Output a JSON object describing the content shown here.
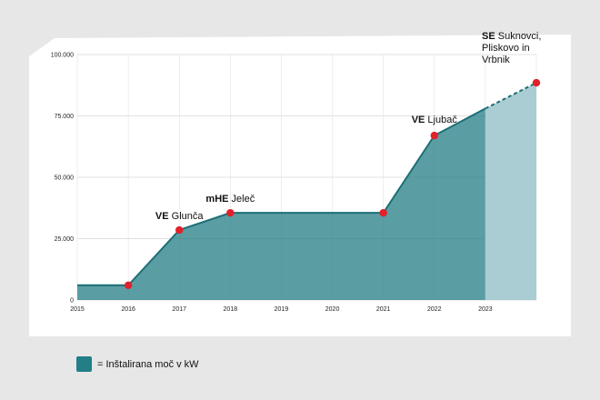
{
  "chart_data": {
    "type": "area",
    "x": [
      "2015",
      "2016",
      "2017",
      "2018",
      "2019",
      "2020",
      "2021",
      "2022",
      "2023"
    ],
    "series": [
      {
        "points": [
          {
            "x": 2015.0,
            "y": 6000
          },
          {
            "x": 2016.0,
            "y": 6000
          },
          {
            "x": 2017.0,
            "y": 28500
          },
          {
            "x": 2018.0,
            "y": 35500
          },
          {
            "x": 2021.0,
            "y": 35500
          },
          {
            "x": 2022.0,
            "y": 67000
          },
          {
            "x": 2023.0,
            "y": 78000
          }
        ],
        "projected": [
          {
            "x": 2023.0,
            "y": 78000
          },
          {
            "x": 2024.0,
            "y": 88500
          }
        ]
      }
    ],
    "markers": [
      {
        "x": 2016.0,
        "y": 6000
      },
      {
        "x": 2017.0,
        "y": 28500
      },
      {
        "x": 2018.0,
        "y": 35500
      },
      {
        "x": 2021.0,
        "y": 35500
      },
      {
        "x": 2022.0,
        "y": 67000
      },
      {
        "x": 2024.0,
        "y": 88500
      }
    ],
    "annotations": [
      {
        "bold": "VE",
        "text": " Glunča",
        "at": 2017.0
      },
      {
        "bold": "mHE",
        "text": " Jeleč",
        "at": 2018.0
      },
      {
        "bold": "VE",
        "text": " Ljubač",
        "at": 2022.0
      },
      {
        "bold": "SE",
        "text": " Suknovci,",
        "lines": [
          "Pliskovo in",
          "Vrbnik"
        ],
        "at": 2024.0
      }
    ],
    "yticks": [
      0,
      25000,
      50000,
      75000,
      100000
    ],
    "ytick_labels": [
      "0",
      "25.000",
      "50.000",
      "75.000",
      "100.000"
    ],
    "ylim": [
      0,
      100000
    ],
    "xlim": [
      2015,
      2024
    ],
    "grid": true,
    "colors": {
      "area": "#237e86",
      "projected_area": "#a9cdd3",
      "marker": "#e2202a",
      "background": "#ffffff"
    }
  },
  "legend": {
    "label": "= Inštalirana moč v kW"
  }
}
